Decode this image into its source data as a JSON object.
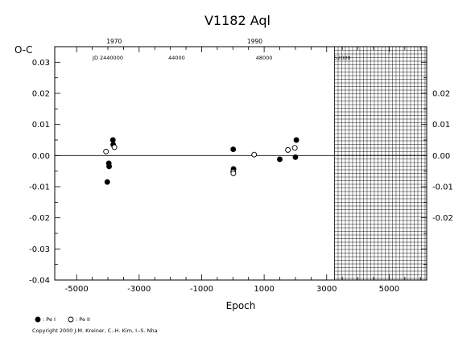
{
  "chart_data": {
    "type": "scatter",
    "title": "V1182 Aql",
    "ylabel": "O-C",
    "xlabel": "Epoch",
    "xlim": [
      -5700,
      6200
    ],
    "ylim": [
      -0.04,
      0.035
    ],
    "x_ticks": [
      "-5000",
      "-3000",
      "-1000",
      "1000",
      "3000",
      "5000"
    ],
    "x_tick_values": [
      -5000,
      -3000,
      -1000,
      1000,
      3000,
      5000
    ],
    "y_ticks_left": [
      "0.03",
      "0.02",
      "0.01",
      "0.00",
      "-0.01",
      "-0.02",
      "-0.03",
      "-0.04"
    ],
    "y_tick_values_left": [
      0.03,
      0.02,
      0.01,
      0.0,
      -0.01,
      -0.02,
      -0.03,
      -0.04
    ],
    "y_ticks_right": [
      "0.02",
      "0.01",
      "0.00",
      "-0.01",
      "-0.02"
    ],
    "y_tick_values_right": [
      0.02,
      0.01,
      0.0,
      -0.01,
      -0.02
    ],
    "top_year_labels": [
      "1970",
      "1990"
    ],
    "top_year_epochs": [
      -3800,
      700
    ],
    "jd_labels": [
      "JD 2440000",
      "44000",
      "48000",
      "52000"
    ],
    "jd_label_epochs": [
      -4000,
      -1800,
      1000,
      3500
    ],
    "future_hatch_start_epoch": 3250,
    "series": [
      {
        "name": "Pe I",
        "marker": "filled",
        "points": [
          [
            -4020,
            -0.0085
          ],
          [
            -3970,
            -0.0025
          ],
          [
            -3960,
            -0.0035
          ],
          [
            -3840,
            0.005
          ],
          [
            -3830,
            0.0035
          ],
          [
            10,
            0.002
          ],
          [
            20,
            -0.0043
          ],
          [
            1500,
            -0.0012
          ],
          [
            2000,
            -0.0005
          ],
          [
            2030,
            0.005
          ]
        ]
      },
      {
        "name": "Pe II",
        "marker": "open",
        "points": [
          [
            -4060,
            0.0013
          ],
          [
            -3790,
            0.0027
          ],
          [
            10,
            -0.0052
          ],
          [
            15,
            -0.0057
          ],
          [
            680,
            0.0003
          ],
          [
            1760,
            0.0018
          ],
          [
            1980,
            0.0025
          ]
        ]
      }
    ],
    "reference_line_y": 0.0,
    "legend": [
      {
        "marker": "filled",
        "label": ": Pe I"
      },
      {
        "marker": "open",
        "label": ": Pe II"
      }
    ],
    "legend_placement": "bottom-left",
    "grid": false
  },
  "footer": {
    "copyright": "Copyright 2000 J.M. Kreiner, C.-H. Kim, I.-S. Nha"
  }
}
